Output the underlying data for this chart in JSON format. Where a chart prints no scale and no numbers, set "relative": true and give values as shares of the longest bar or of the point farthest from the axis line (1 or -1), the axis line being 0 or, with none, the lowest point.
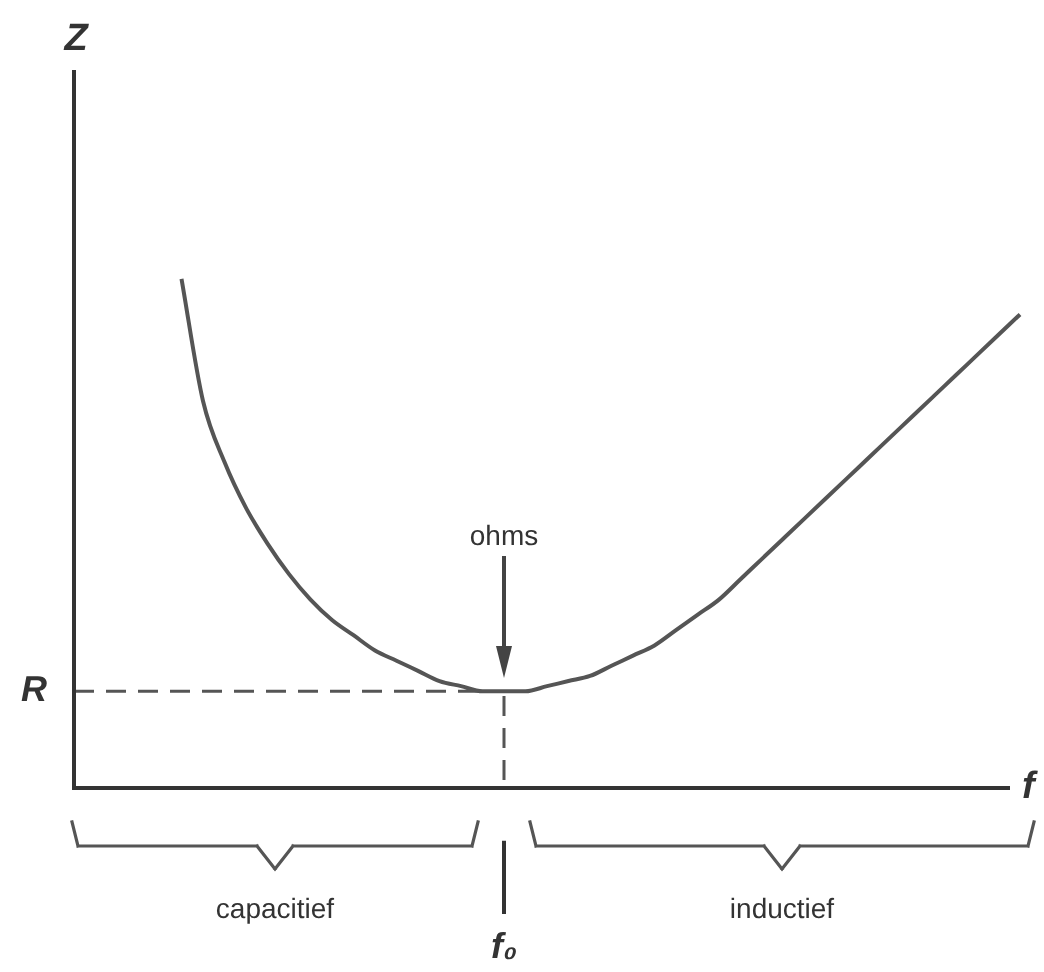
{
  "chart_data": {
    "type": "line",
    "xlabel": "f",
    "relative": true,
    "categories": [
      null,
      null,
      null,
      null,
      null,
      null,
      null,
      null,
      null,
      null,
      null,
      null,
      null,
      null,
      null,
      null,
      null,
      null,
      null,
      null,
      null,
      null,
      null,
      null,
      null,
      null,
      null,
      null,
      null,
      null,
      null,
      null,
      null,
      null,
      null,
      null,
      null,
      null,
      null,
      null,
      null,
      null,
      null,
      null,
      null
    ],
    "series": [
      {
        "color": "#555555",
        "values": [
          null,
          null,
          null,
          null,
          null,
          1,
          0.76,
          0.64,
          0.55,
          0.48,
          0.42,
          0.37,
          0.33,
          0.3,
          0.27,
          0.25,
          0.23,
          0.21,
          0.2,
          0.19,
          0.19,
          0.19,
          0.2,
          0.21,
          0.22,
          0.24,
          0.26,
          0.28,
          0.31,
          0.34,
          0.37,
          0.41,
          0.45,
          0.49,
          0.53,
          0.57,
          0.61,
          0.65,
          0.69,
          0.73,
          0.77,
          0.81,
          0.85,
          0.89,
          0.93
        ]
      }
    ],
    "ref_lines": [
      {
        "axis": "y",
        "value": 0.19,
        "label": "R",
        "line_style": "dashed",
        "color": "#555555"
      }
    ],
    "annotations": [
      "Z",
      "ohms",
      "capacitief",
      "inductief",
      "f₀"
    ]
  }
}
